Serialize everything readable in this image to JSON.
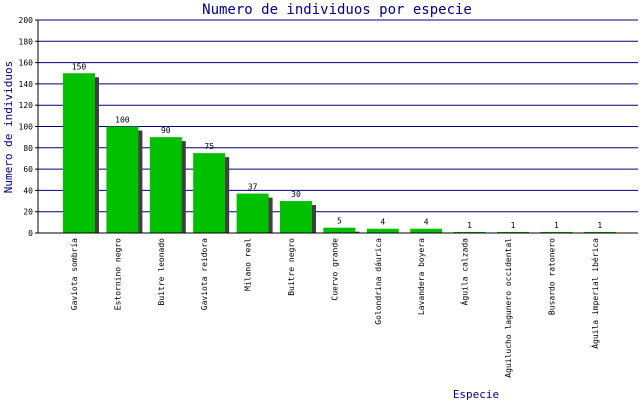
{
  "chart_data": {
    "type": "bar",
    "title": "Numero de individuos por especie",
    "xlabel": "Especie",
    "ylabel": "Numero de individuos",
    "ylim": [
      0,
      200
    ],
    "yticks": [
      0,
      20,
      40,
      60,
      80,
      100,
      120,
      140,
      160,
      180,
      200
    ],
    "categories": [
      "Gaviota sombría",
      "Estornino negro",
      "Buitre leonado",
      "Gaviota reidora",
      "Milano real",
      "Buitre negro",
      "Cuervo grande",
      "Golondrina dáurica",
      "Lavandera boyera",
      "Águila calzada",
      "Aguilucho lagunero occidental",
      "Busardo ratonero",
      "Águila imperial ibérica"
    ],
    "values": [
      150,
      100,
      90,
      75,
      37,
      30,
      5,
      4,
      4,
      1,
      1,
      1,
      1
    ],
    "grid": true,
    "colors": {
      "bar": "#00c000",
      "bar_shadow": "#404040",
      "grid": "#000080",
      "axis": "#000000",
      "text": "#000080"
    }
  }
}
